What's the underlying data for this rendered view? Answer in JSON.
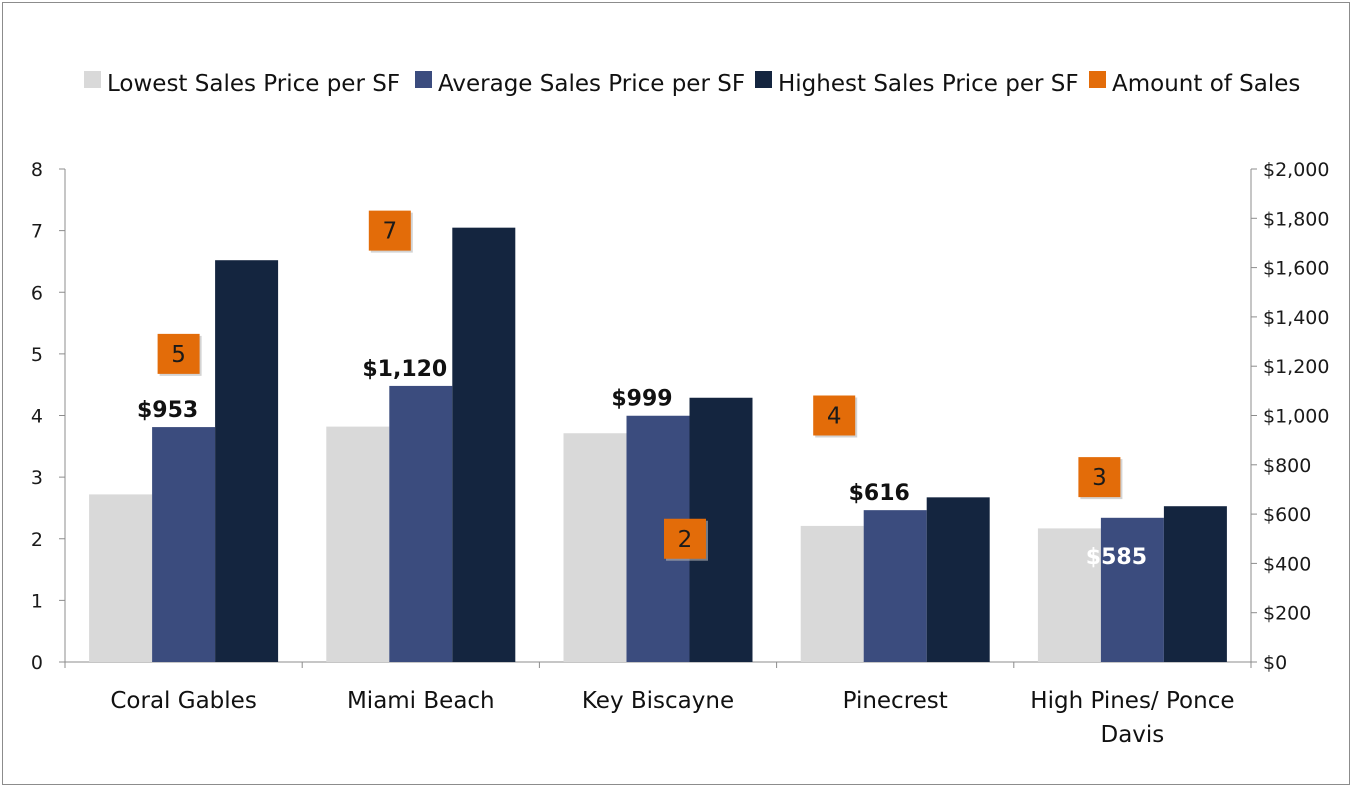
{
  "chart_data": {
    "type": "bar",
    "categories": [
      "Coral Gables",
      "Miami Beach",
      "Key Biscayne",
      "Pinecrest",
      "High Pines/ Ponce Davis"
    ],
    "series": [
      {
        "name": "Lowest Sales Price per SF",
        "axis": "right",
        "color": "#d9d9d9",
        "values": [
          680,
          955,
          928,
          552,
          542
        ]
      },
      {
        "name": "Average Sales Price per SF",
        "axis": "right",
        "color": "#3b4c7e",
        "values": [
          953,
          1120,
          999,
          616,
          585
        ],
        "labels": [
          "$953",
          "$1,120",
          "$999",
          "$616",
          "$585"
        ]
      },
      {
        "name": "Highest Sales Price per SF",
        "axis": "right",
        "color": "#14253f",
        "values": [
          1630,
          1762,
          1072,
          668,
          632
        ]
      },
      {
        "name": "Amount of Sales",
        "axis": "left",
        "type": "marker",
        "color": "#e36c09",
        "values": [
          5,
          7,
          2,
          4,
          3
        ]
      }
    ],
    "left_axis": {
      "min": 0,
      "max": 8,
      "ticks": [
        "0",
        "1",
        "2",
        "3",
        "4",
        "5",
        "6",
        "7",
        "8"
      ]
    },
    "right_axis": {
      "min": 0,
      "max": 2000,
      "ticks": [
        "$0",
        "$200",
        "$400",
        "$600",
        "$800",
        "$1,000",
        "$1,200",
        "$1,400",
        "$1,600",
        "$1,800",
        "$2,000"
      ]
    },
    "category_labels": [
      [
        "Coral Gables"
      ],
      [
        "Miami Beach"
      ],
      [
        "Key Biscayne"
      ],
      [
        "Pinecrest"
      ],
      [
        "High Pines/ Ponce",
        "Davis"
      ]
    ],
    "legend_position": "top",
    "grid": false
  }
}
